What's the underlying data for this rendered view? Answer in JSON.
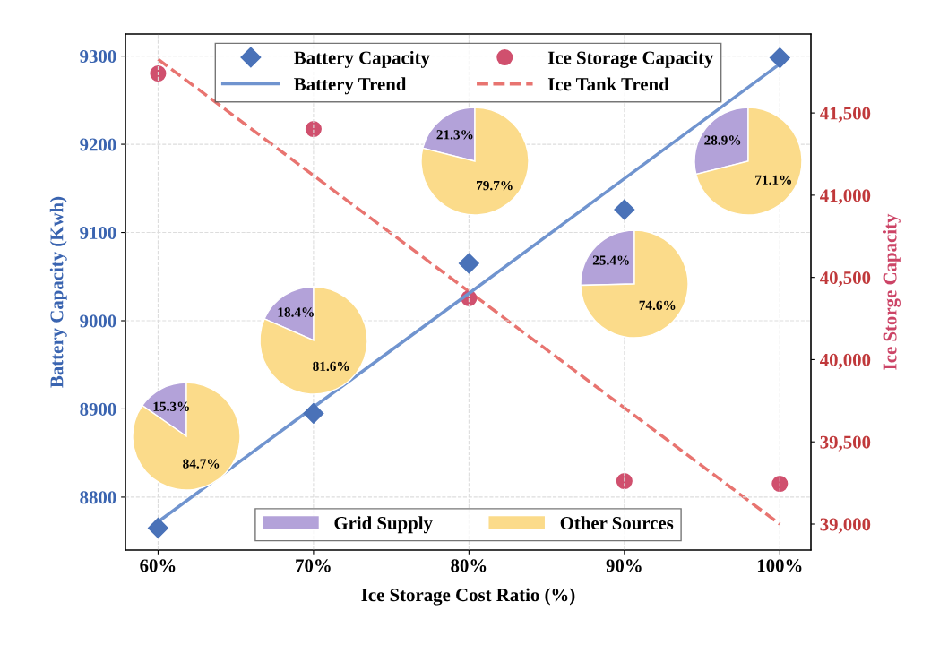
{
  "chart_data": [
    {
      "type": "scatter",
      "xlabel": "Ice Storage Cost Ratio (%)",
      "ylabel": "Battery Capacity (Kwh)",
      "y2label": "Ice Storge Capacity",
      "x": [
        60,
        70,
        80,
        90,
        100
      ],
      "xlim": [
        57.9,
        102
      ],
      "xticks": [
        {
          "value": 60,
          "label": "60%"
        },
        {
          "value": 70,
          "label": "70%"
        },
        {
          "value": 80,
          "label": "80%"
        },
        {
          "value": 90,
          "label": "90%"
        },
        {
          "value": 100,
          "label": "100%"
        }
      ],
      "ylim": [
        8740,
        9325
      ],
      "yticks": [
        8800,
        8900,
        9000,
        9100,
        9200,
        9300
      ],
      "y2lim": [
        38842,
        41980
      ],
      "y2ticks": [
        {
          "value": 39000,
          "label": "39,000"
        },
        {
          "value": 39500,
          "label": "39,500"
        },
        {
          "value": 40000,
          "label": "40,000"
        },
        {
          "value": 40500,
          "label": "40,500"
        },
        {
          "value": 41000,
          "label": "41,000"
        },
        {
          "value": 41500,
          "label": "41,500"
        }
      ],
      "grid": true,
      "legend": "top",
      "series": [
        {
          "name": "Battery Capacity",
          "type": "scatter",
          "marker": "diamond",
          "color": "#4a72b8",
          "values": [
            8765,
            8895,
            9065,
            9126,
            9298
          ]
        },
        {
          "name": "Battery Trend",
          "type": "line",
          "line_style": "solid",
          "color": "#7094cf",
          "values": [
            8772,
            8902,
            9031,
            9161,
            9291
          ]
        },
        {
          "name": "Ice Storage Capacity",
          "type": "scatter",
          "marker": "circle",
          "axis": "y2",
          "color": "#d0506e",
          "values": [
            41740,
            41402,
            40373,
            39261,
            39245
          ]
        },
        {
          "name": "Ice Tank Trend",
          "type": "line",
          "line_style": "dashed",
          "axis": "y2",
          "color": "#e87470",
          "values": [
            41827,
            41120,
            40414,
            39707,
            39000
          ]
        }
      ]
    },
    {
      "type": "pie",
      "categories": [
        "Grid Supply",
        "Other Sources"
      ],
      "values": [
        15.3,
        84.7
      ],
      "colors": [
        "#b3a2d9",
        "#fbdb8a"
      ],
      "value_labels": [
        "15.3%",
        "84.7%"
      ],
      "legend": "bottom"
    },
    {
      "type": "pie",
      "categories": [
        null,
        null
      ],
      "values": [
        18.4,
        81.6
      ],
      "colors": [
        "#b3a2d9",
        "#fbdb8a"
      ],
      "value_labels": [
        "18.4%",
        "81.6%"
      ]
    },
    {
      "type": "pie",
      "categories": [
        null,
        null
      ],
      "values": [
        21.3,
        79.7
      ],
      "colors": [
        "#b3a2d9",
        "#fbdb8a"
      ],
      "value_labels": [
        "21.3%",
        "79.7%"
      ]
    },
    {
      "type": "pie",
      "categories": [
        null,
        null
      ],
      "values": [
        25.4,
        74.6
      ],
      "colors": [
        "#b3a2d9",
        "#fbdb8a"
      ],
      "value_labels": [
        "25.4%",
        "74.6%"
      ]
    },
    {
      "type": "pie",
      "categories": [
        null,
        null
      ],
      "values": [
        28.9,
        71.1
      ],
      "colors": [
        "#b3a2d9",
        "#fbdb8a"
      ],
      "value_labels": [
        "28.9%",
        "71.1%"
      ]
    }
  ]
}
